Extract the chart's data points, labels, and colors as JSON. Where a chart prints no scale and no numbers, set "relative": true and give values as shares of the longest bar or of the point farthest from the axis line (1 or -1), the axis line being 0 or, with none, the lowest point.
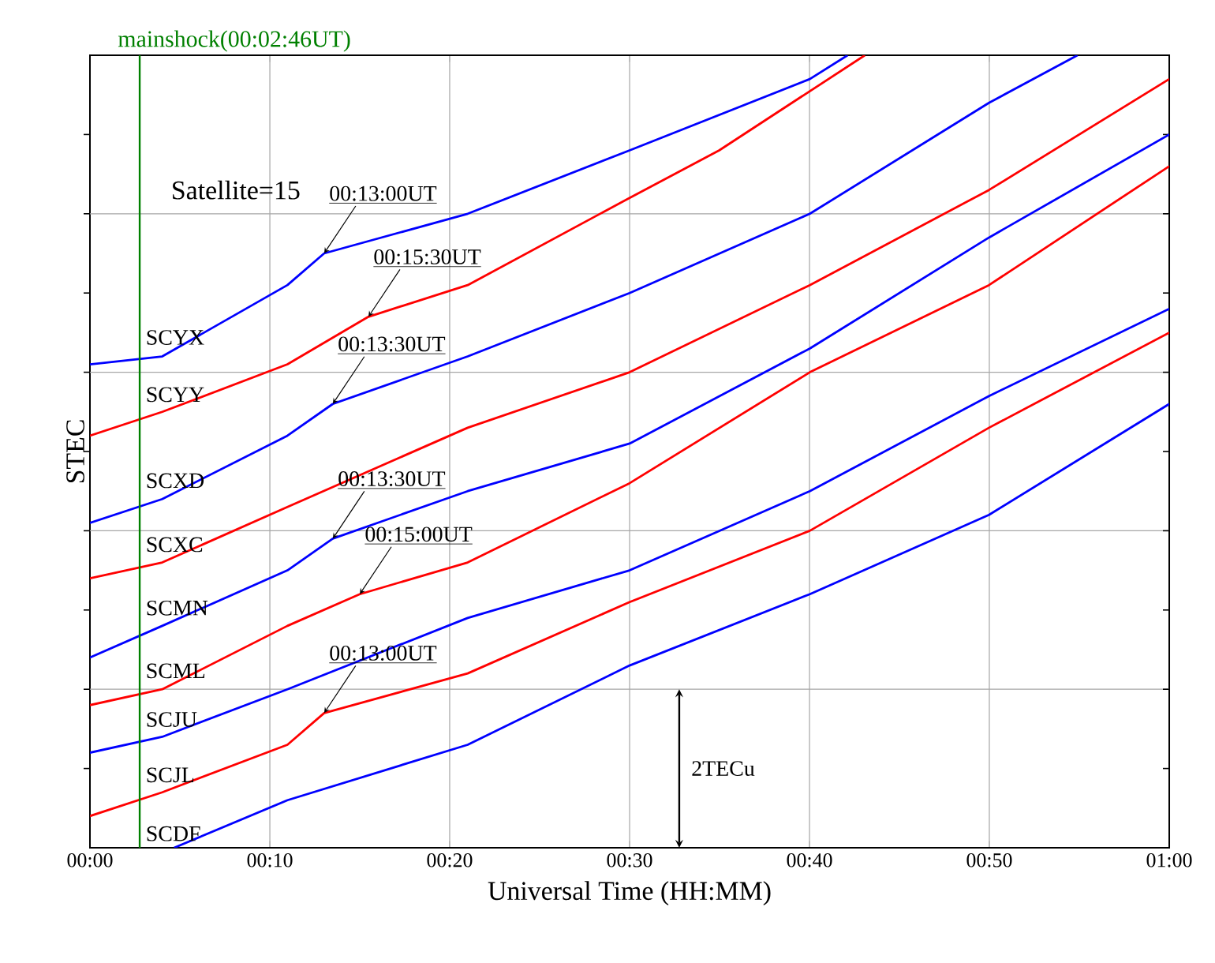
{
  "chart_data": {
    "type": "line",
    "relative": true,
    "xlabel": "Universal Time (HH:MM)",
    "ylabel": "STEC",
    "xlim": [
      0,
      1
    ],
    "xticks": [
      {
        "value": 0,
        "label": "00:00"
      },
      {
        "value": 0.1667,
        "label": "00:10"
      },
      {
        "value": 0.3333,
        "label": "00:20"
      },
      {
        "value": 0.5,
        "label": "00:30"
      },
      {
        "value": 0.6667,
        "label": "00:40"
      },
      {
        "value": 0.8333,
        "label": "00:50"
      },
      {
        "value": 1,
        "label": "01:00"
      }
    ],
    "grid": true,
    "marker": "none",
    "line_style": "solid",
    "series": [
      {
        "name": "SCYX",
        "color": "#0000ff",
        "x": [
          0,
          0.067,
          0.183,
          0.217,
          0.35,
          0.5,
          0.667,
          0.702
        ],
        "values": [
          0.61,
          0.62,
          0.71,
          0.75,
          0.8,
          0.88,
          0.97,
          1.0
        ]
      },
      {
        "name": "SCYY",
        "color": "#ff0000",
        "x": [
          0,
          0.067,
          0.183,
          0.258,
          0.35,
          0.5,
          0.583,
          0.718
        ],
        "values": [
          0.52,
          0.55,
          0.61,
          0.67,
          0.71,
          0.82,
          0.88,
          1.0
        ]
      },
      {
        "name": "SCXD",
        "color": "#0000ff",
        "x": [
          0,
          0.067,
          0.183,
          0.225,
          0.35,
          0.5,
          0.667,
          0.833,
          0.915
        ],
        "values": [
          0.41,
          0.44,
          0.52,
          0.56,
          0.62,
          0.7,
          0.8,
          0.94,
          1.0
        ]
      },
      {
        "name": "SCXC",
        "color": "#ff0000",
        "x": [
          0,
          0.067,
          0.183,
          0.35,
          0.5,
          0.667,
          0.833,
          1.0
        ],
        "values": [
          0.34,
          0.36,
          0.43,
          0.53,
          0.6,
          0.71,
          0.83,
          0.97
        ]
      },
      {
        "name": "SCMN",
        "color": "#0000ff",
        "x": [
          0,
          0.067,
          0.183,
          0.225,
          0.35,
          0.5,
          0.667,
          0.833,
          1.0
        ],
        "values": [
          0.24,
          0.28,
          0.35,
          0.39,
          0.45,
          0.51,
          0.63,
          0.77,
          0.9
        ]
      },
      {
        "name": "SCML",
        "color": "#ff0000",
        "x": [
          0,
          0.067,
          0.183,
          0.25,
          0.35,
          0.5,
          0.667,
          0.833,
          1.0
        ],
        "values": [
          0.18,
          0.2,
          0.28,
          0.32,
          0.36,
          0.46,
          0.6,
          0.71,
          0.86
        ]
      },
      {
        "name": "SCJU",
        "color": "#0000ff",
        "x": [
          0,
          0.067,
          0.183,
          0.35,
          0.5,
          0.667,
          0.833,
          1.0
        ],
        "values": [
          0.12,
          0.14,
          0.2,
          0.29,
          0.35,
          0.45,
          0.57,
          0.68
        ]
      },
      {
        "name": "SCJL",
        "color": "#ff0000",
        "x": [
          0,
          0.067,
          0.183,
          0.217,
          0.35,
          0.5,
          0.667,
          0.833,
          1.0
        ],
        "values": [
          0.04,
          0.07,
          0.13,
          0.17,
          0.22,
          0.31,
          0.4,
          0.53,
          0.65
        ]
      },
      {
        "name": "SCDF",
        "color": "#0000ff",
        "x": [
          0.078,
          0.183,
          0.35,
          0.5,
          0.667,
          0.833,
          1.0
        ],
        "values": [
          0,
          0.06,
          0.13,
          0.23,
          0.32,
          0.42,
          0.56
        ]
      }
    ],
    "ref_lines": [
      {
        "axis": "x",
        "value": 0.0461,
        "label": "mainshock(00:02:46UT)",
        "color": "#008000"
      }
    ],
    "annotations": [
      "Satellite=15",
      "2TECu",
      {
        "text": "00:13:00UT",
        "x": 0.217,
        "y": 0.75
      },
      {
        "text": "00:15:30UT",
        "x": 0.258,
        "y": 0.67
      },
      {
        "text": "00:13:30UT",
        "x": 0.225,
        "y": 0.56
      },
      {
        "text": "00:13:30UT",
        "x": 0.225,
        "y": 0.39
      },
      {
        "text": "00:15:00UT",
        "x": 0.25,
        "y": 0.32
      },
      {
        "text": "00:13:00UT",
        "x": 0.217,
        "y": 0.17
      }
    ]
  }
}
